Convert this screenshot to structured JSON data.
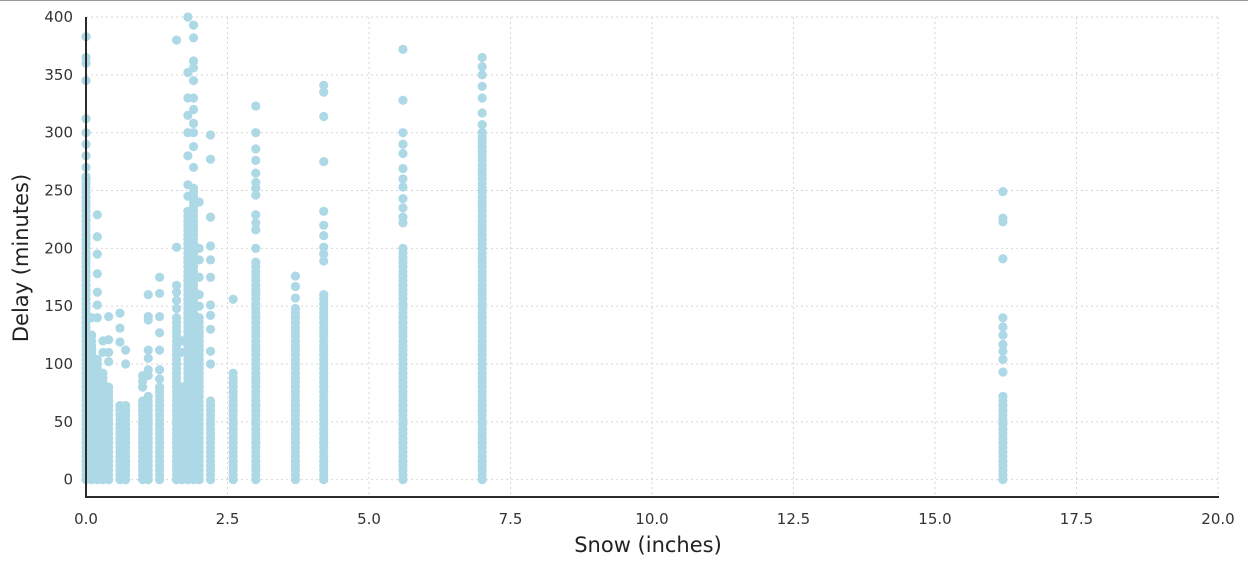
{
  "chart_data": {
    "type": "scatter",
    "title": "",
    "xlabel": "Snow (inches)",
    "ylabel": "Delay (minutes)",
    "xlim": [
      0,
      20
    ],
    "ylim": [
      -15,
      400
    ],
    "grid": true,
    "marker_color": "#add8e6",
    "x_ticks": [
      {
        "value": 0,
        "label": "0.0"
      },
      {
        "value": 2.5,
        "label": "2.5"
      },
      {
        "value": 5,
        "label": "5.0"
      },
      {
        "value": 7.5,
        "label": "7.5"
      },
      {
        "value": 10,
        "label": "10.0"
      },
      {
        "value": 12.5,
        "label": "12.5"
      },
      {
        "value": 15,
        "label": "15.0"
      },
      {
        "value": 17.5,
        "label": "17.5"
      },
      {
        "value": 20,
        "label": "20.0"
      }
    ],
    "y_ticks": [
      {
        "value": 0,
        "label": "0"
      },
      {
        "value": 50,
        "label": "50"
      },
      {
        "value": 100,
        "label": "100"
      },
      {
        "value": 150,
        "label": "150"
      },
      {
        "value": 200,
        "label": "200"
      },
      {
        "value": 250,
        "label": "250"
      },
      {
        "value": 300,
        "label": "300"
      },
      {
        "value": 350,
        "label": "350"
      },
      {
        "value": 400,
        "label": "400"
      }
    ],
    "columns": [
      {
        "x": 0.0,
        "dense_max": 260,
        "points": [
          383,
          365,
          360,
          345,
          312,
          300,
          290,
          280,
          270,
          262
        ]
      },
      {
        "x": 0.1,
        "dense_max": 120,
        "points": [
          140,
          125
        ]
      },
      {
        "x": 0.2,
        "dense_max": 105,
        "points": [
          229,
          210,
          195,
          178,
          162,
          151,
          140
        ]
      },
      {
        "x": 0.3,
        "dense_max": 95,
        "points": [
          120,
          110
        ]
      },
      {
        "x": 0.4,
        "dense_max": 82,
        "points": [
          141,
          121,
          110,
          102
        ]
      },
      {
        "x": 0.6,
        "dense_max": 65,
        "points": [
          144,
          131,
          119
        ]
      },
      {
        "x": 0.7,
        "dense_max": 65,
        "points": [
          112,
          100
        ]
      },
      {
        "x": 1.0,
        "dense_max": 70,
        "points": [
          90,
          85,
          80
        ]
      },
      {
        "x": 1.1,
        "dense_max": 75,
        "points": [
          160,
          141,
          138,
          112,
          105,
          95,
          90
        ]
      },
      {
        "x": 1.3,
        "dense_max": 82,
        "points": [
          175,
          161,
          141,
          127,
          112,
          95,
          87
        ]
      },
      {
        "x": 1.6,
        "dense_max": 140,
        "points": [
          380,
          201,
          168,
          162,
          155,
          148
        ]
      },
      {
        "x": 1.7,
        "dense_max": 80,
        "points": [
          120,
          110
        ]
      },
      {
        "x": 1.8,
        "dense_max": 235,
        "points": [
          400,
          352,
          330,
          315,
          300,
          280,
          255,
          245
        ]
      },
      {
        "x": 1.9,
        "dense_max": 255,
        "points": [
          393,
          382,
          362,
          356,
          345,
          330,
          320,
          308,
          300,
          288,
          270
        ]
      },
      {
        "x": 2.0,
        "dense_max": 140,
        "points": [
          240,
          200,
          190,
          175,
          160,
          150
        ]
      },
      {
        "x": 2.2,
        "dense_max": 70,
        "points": [
          298,
          277,
          227,
          202,
          190,
          175,
          151,
          142,
          130,
          111,
          100
        ]
      },
      {
        "x": 2.6,
        "dense_max": 95,
        "points": [
          156
        ]
      },
      {
        "x": 3.0,
        "dense_max": 190,
        "points": [
          323,
          300,
          286,
          276,
          265,
          257,
          252,
          246,
          229,
          222,
          216,
          200
        ]
      },
      {
        "x": 3.7,
        "dense_max": 150,
        "points": [
          176,
          167,
          157
        ]
      },
      {
        "x": 4.2,
        "dense_max": 160,
        "points": [
          341,
          335,
          314,
          275,
          232,
          220,
          211,
          201,
          195,
          189
        ]
      },
      {
        "x": 5.6,
        "dense_max": 200,
        "points": [
          372,
          328,
          300,
          290,
          282,
          269,
          260,
          253,
          243,
          235,
          227,
          222
        ]
      },
      {
        "x": 7.0,
        "dense_max": 300,
        "points": [
          365,
          357,
          350,
          340,
          330,
          317,
          307,
          300
        ]
      },
      {
        "x": 16.2,
        "dense_max": 75,
        "points": [
          249,
          226,
          223,
          191,
          140,
          132,
          125,
          117,
          111,
          104,
          93
        ]
      }
    ]
  }
}
